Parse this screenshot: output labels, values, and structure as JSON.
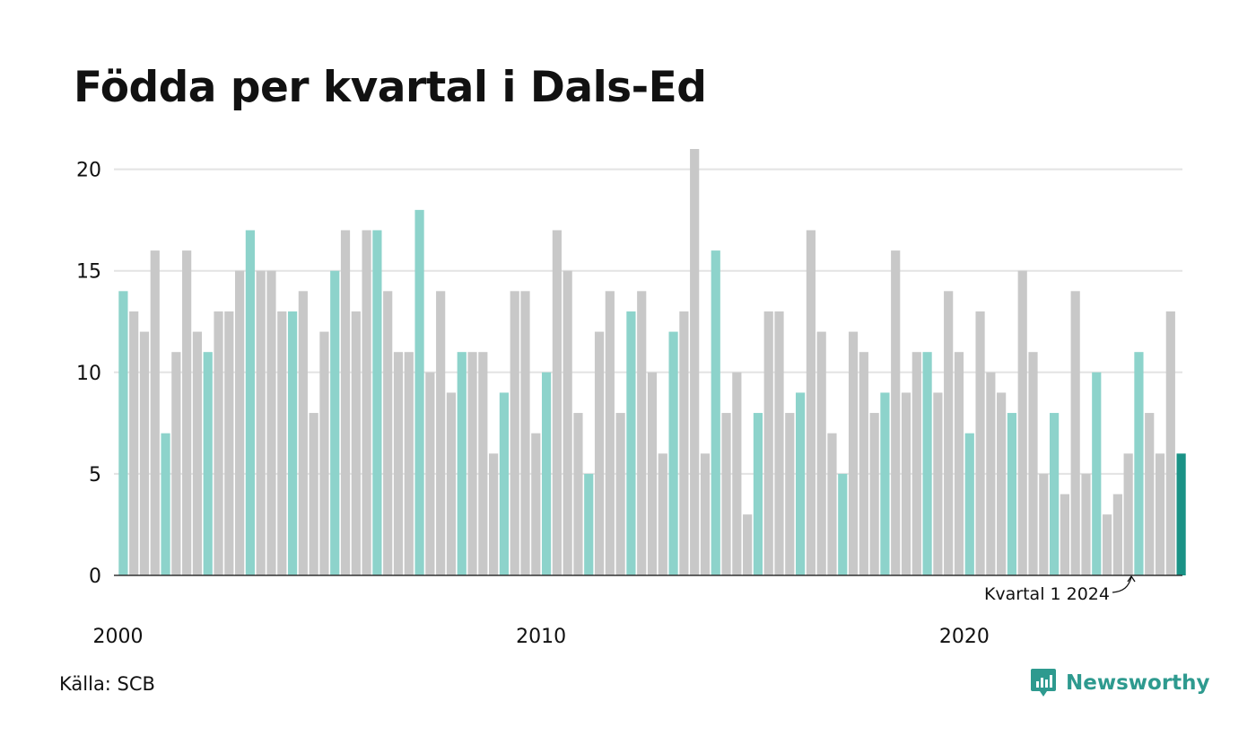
{
  "title": "Födda per kvartal i Dals-Ed",
  "source": "Källa: SCB",
  "brand": {
    "name": "Newsworthy",
    "icon": "newsworthy-logo-icon"
  },
  "annotation": "Kvartal 1 2024",
  "colors": {
    "q1": "#8dd3cb",
    "other": "#c8c8c8",
    "latest": "#1a9286",
    "grid": "#e3e3e3",
    "axis": "#333333",
    "brand": "#2e9a8f"
  },
  "chart_data": {
    "type": "bar",
    "title": "Födda per kvartal i Dals-Ed",
    "start_year": 2000,
    "quarters_per_year": 4,
    "ylim": [
      0,
      21
    ],
    "yticks": [
      0,
      5,
      10,
      15,
      20
    ],
    "xticks": [
      "2000",
      "2010",
      "2020"
    ],
    "grid": true,
    "highlight": "first quarter of each year",
    "values": [
      14,
      13,
      12,
      16,
      7,
      11,
      16,
      12,
      11,
      13,
      13,
      15,
      17,
      15,
      15,
      13,
      13,
      14,
      8,
      12,
      15,
      17,
      13,
      17,
      17,
      14,
      11,
      11,
      18,
      10,
      14,
      9,
      11,
      11,
      11,
      6,
      9,
      14,
      14,
      7,
      10,
      17,
      15,
      8,
      5,
      12,
      14,
      8,
      13,
      14,
      10,
      6,
      12,
      13,
      21,
      6,
      16,
      8,
      10,
      3,
      8,
      13,
      13,
      8,
      9,
      17,
      12,
      7,
      5,
      12,
      11,
      8,
      9,
      16,
      9,
      11,
      11,
      9,
      14,
      11,
      7,
      13,
      10,
      9,
      8,
      15,
      11,
      5,
      8,
      4,
      14,
      5,
      10,
      3,
      4,
      6,
      11,
      8,
      6,
      13,
      6
    ]
  }
}
